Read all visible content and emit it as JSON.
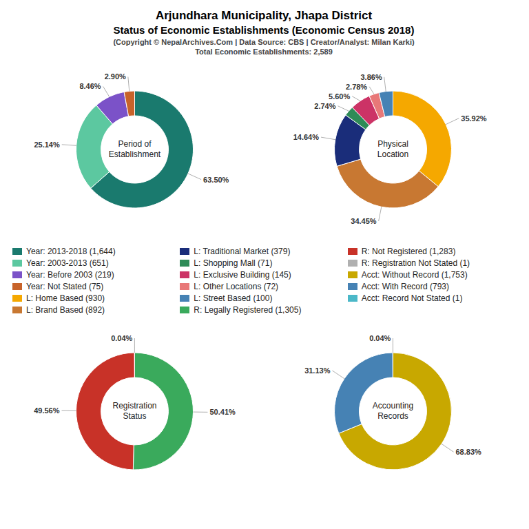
{
  "title": "Arjundhara Municipality, Jhapa District\nStatus of Economic Establishments (Economic Census 2018)",
  "subtitle": "(Copyright © NepalArchives.Com | Data Source: CBS | Creator/Analyst: Milan Karki)\nTotal Economic Establishments: 2,589",
  "legend": "center",
  "chart_data": [
    {
      "type": "pie",
      "title": "Period of\nEstablishment",
      "categories": [
        "Year: 2013-2018 (1,644)",
        "Year: 2003-2013 (651)",
        "Year: Before 2003 (219)",
        "Year: Not Stated (75)"
      ],
      "values": [
        63.5,
        25.14,
        8.46,
        2.9
      ],
      "value_labels": [
        "63.50%",
        "25.14%",
        "8.46%",
        "2.90%"
      ],
      "colors": [
        "#1a7a6e",
        "#5cc8a0",
        "#7b52c8",
        "#c8632a"
      ],
      "data_labels": true
    },
    {
      "type": "pie",
      "title": "Physical\nLocation",
      "categories": [
        "L: Home Based (930)",
        "L: Brand Based (892)",
        "L: Traditional Market (379)",
        "L: Shopping Mall (71)",
        "L: Exclusive Building (145)",
        "L: Other Locations (72)",
        "L: Street Based (100)"
      ],
      "values": [
        35.92,
        34.45,
        14.64,
        2.74,
        5.6,
        2.78,
        3.86
      ],
      "value_labels": [
        "35.92%",
        "34.45%",
        "14.64%",
        "2.74%",
        "5.60%",
        "2.78%",
        "3.86%"
      ],
      "colors": [
        "#f5a800",
        "#c87832",
        "#1a2d7a",
        "#2e8b57",
        "#cc3366",
        "#e87878",
        "#4682b4"
      ],
      "data_labels": true
    },
    {
      "type": "pie",
      "title": "Registration\nStatus",
      "categories": [
        "R: Legally Registered (1,305)",
        "R: Not Registered (1,283)",
        "R: Registration Not Stated (1)"
      ],
      "values": [
        50.41,
        49.56,
        0.04
      ],
      "value_labels": [
        "50.41%",
        "49.56%",
        "0.04%"
      ],
      "colors": [
        "#3aaa5c",
        "#c83228",
        "#b0b0b0"
      ],
      "data_labels": true
    },
    {
      "type": "pie",
      "title": "Accounting\nRecords",
      "categories": [
        "Acct: Without Record (1,753)",
        "Acct: With Record (793)",
        "Acct: Record Not Stated (1)"
      ],
      "values": [
        68.83,
        31.13,
        0.04
      ],
      "value_labels": [
        "68.83%",
        "31.13%",
        "0.04%"
      ],
      "colors": [
        "#c8a800",
        "#4682b4",
        "#4bb8c8"
      ],
      "data_labels": true
    }
  ]
}
